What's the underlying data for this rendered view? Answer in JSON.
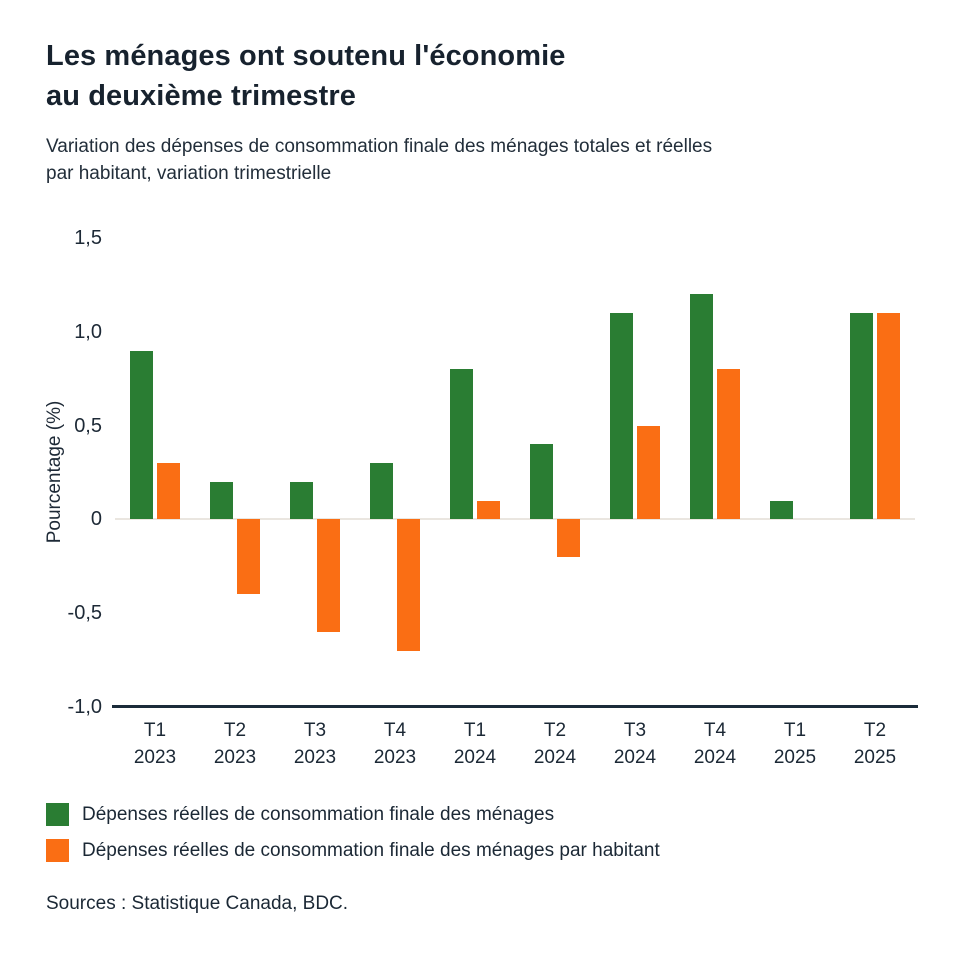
{
  "page": {
    "title_lines": [
      "Les ménages ont soutenu l'économie",
      "au deuxième trimestre"
    ],
    "subtitle_lines": [
      "Variation des dépenses de consommation finale des ménages totales et réelles",
      "par habitant, variation trimestrielle"
    ],
    "sources": "Sources : Statistique Canada, BDC."
  },
  "chart_data": {
    "type": "bar",
    "title": "Les ménages ont soutenu l'économie au deuxième trimestre",
    "subtitle": "Variation des dépenses de consommation finale des ménages totales et réelles par habitant, variation trimestrielle",
    "xlabel": "",
    "ylabel": "Pourcentage (%)",
    "ylim": [
      -1.0,
      1.5
    ],
    "yticks": [
      1.5,
      1.0,
      0.5,
      0,
      -0.5,
      -1.0
    ],
    "ytick_labels": [
      "1,5",
      "1,0",
      "0,5",
      "0",
      "-0,5",
      "-1,0"
    ],
    "grid": false,
    "legend_position": "bottom",
    "categories": [
      {
        "quarter": "T1",
        "year": "2023"
      },
      {
        "quarter": "T2",
        "year": "2023"
      },
      {
        "quarter": "T3",
        "year": "2023"
      },
      {
        "quarter": "T4",
        "year": "2023"
      },
      {
        "quarter": "T1",
        "year": "2024"
      },
      {
        "quarter": "T2",
        "year": "2024"
      },
      {
        "quarter": "T3",
        "year": "2024"
      },
      {
        "quarter": "T4",
        "year": "2024"
      },
      {
        "quarter": "T1",
        "year": "2025"
      },
      {
        "quarter": "T2",
        "year": "2025"
      }
    ],
    "series": [
      {
        "name": "Dépenses réelles de consommation finale des ménages",
        "color": "#2a7d33",
        "values": [
          0.9,
          0.2,
          0.2,
          0.3,
          0.8,
          0.4,
          1.1,
          1.2,
          0.1,
          1.1
        ]
      },
      {
        "name": "Dépenses réelles de consommation finale des ménages par habitant",
        "color": "#fa6e14",
        "values": [
          0.3,
          -0.4,
          -0.6,
          -0.7,
          0.1,
          -0.2,
          0.5,
          0.8,
          0,
          1.1
        ]
      }
    ]
  }
}
